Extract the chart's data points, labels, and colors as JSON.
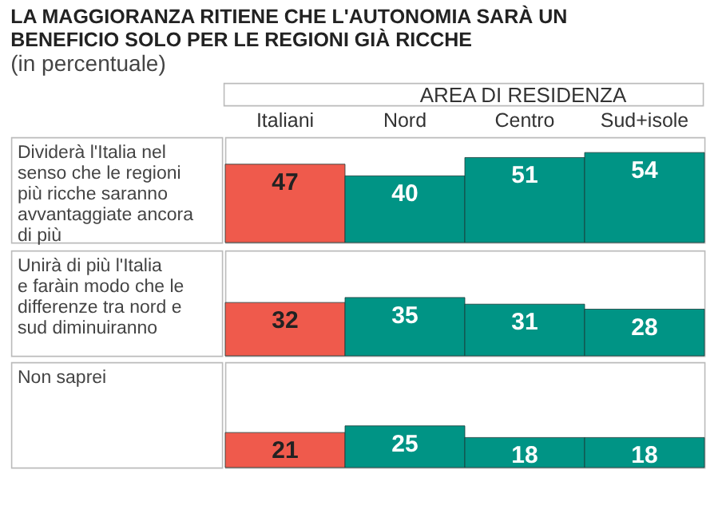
{
  "chart_data": [
    {
      "type": "bar",
      "title": "LA MAGGIORANZA RITIENE CHE L'AUTONOMIA SARÀ UN BENEFICIO SOLO PER LE REGIONI GIÀ RICCHE",
      "subtitle": "(in percentuale)",
      "annotations": [
        "AREA DI RESIDENZA"
      ],
      "ylabel": "Dividerà l'Italia nel senso che le regioni più ricche saranno avvantaggiate ancora di più",
      "categories": [
        "Italiani",
        "Nord",
        "Centro",
        "Sud+isole"
      ],
      "values": [
        47,
        40,
        51,
        54
      ],
      "colors": [
        "#ef5a4c",
        "#009485",
        "#009485",
        "#009485"
      ],
      "data_labels": true
    },
    {
      "type": "bar",
      "ylabel": "Unirà di più l'Italia e faràin modo che le differenze tra nord e sud diminuiranno",
      "categories": [
        null,
        null,
        null,
        null
      ],
      "values": [
        32,
        35,
        31,
        28
      ],
      "colors": [
        "#ef5a4c",
        "#009485",
        "#009485",
        "#009485"
      ],
      "data_labels": true,
      "tick_labels": false
    },
    {
      "type": "bar",
      "ylabel": "Non saprei",
      "categories": [
        null,
        null,
        null,
        null
      ],
      "values": [
        21,
        25,
        18,
        18
      ],
      "colors": [
        "#ef5a4c",
        "#009485",
        "#009485",
        "#009485"
      ],
      "data_labels": true,
      "tick_labels": false
    }
  ]
}
